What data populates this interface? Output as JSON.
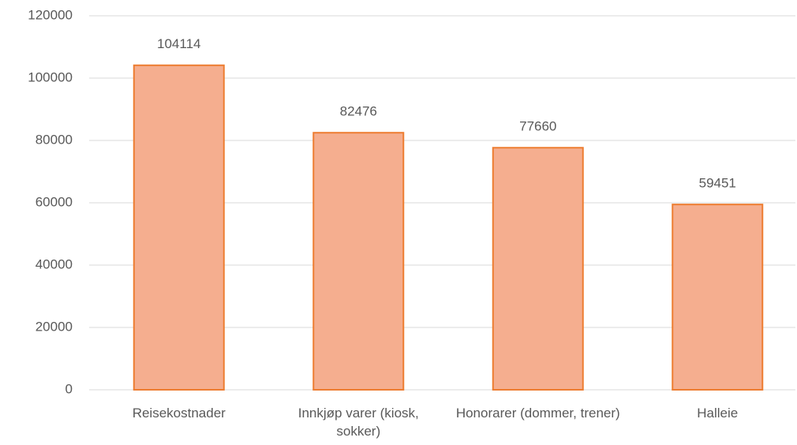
{
  "chart_data": {
    "type": "bar",
    "categories": [
      "Reisekostnader",
      "Innkjøp varer (kiosk, sokker)",
      "Honorarer (dommer, trener)",
      "Halleie"
    ],
    "values": [
      104114,
      82476,
      77660,
      59451
    ],
    "color": "#f5ae8f",
    "edge_color": "#ed7d31",
    "ylim": [
      0,
      120000
    ],
    "yticks": [
      0,
      20000,
      40000,
      60000,
      80000,
      100000,
      120000
    ],
    "grid": true
  }
}
